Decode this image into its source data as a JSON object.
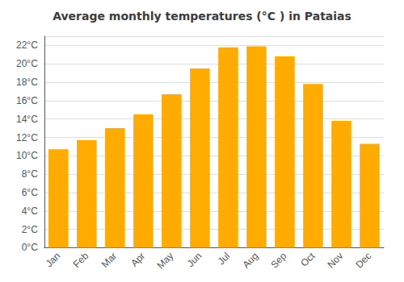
{
  "chart_data": {
    "type": "bar",
    "title": "Average monthly temperatures (°C ) in Pataias",
    "categories": [
      "Jan",
      "Feb",
      "Mar",
      "Apr",
      "May",
      "Jun",
      "Jul",
      "Aug",
      "Sep",
      "Oct",
      "Nov",
      "Dec"
    ],
    "values": [
      10.7,
      11.7,
      13.0,
      14.5,
      16.7,
      19.5,
      21.8,
      21.9,
      20.8,
      17.8,
      13.8,
      11.3
    ],
    "color": "#FFAB00",
    "ylim": [
      0,
      23
    ],
    "yticks": [
      {
        "value": 0,
        "label": "0°C"
      },
      {
        "value": 2,
        "label": "2°C"
      },
      {
        "value": 4,
        "label": "4°C"
      },
      {
        "value": 6,
        "label": "6°C"
      },
      {
        "value": 8,
        "label": "8°C"
      },
      {
        "value": 10,
        "label": "10°C"
      },
      {
        "value": 12,
        "label": "12°C"
      },
      {
        "value": 14,
        "label": "14°C"
      },
      {
        "value": 16,
        "label": "16°C"
      },
      {
        "value": 18,
        "label": "18°C"
      },
      {
        "value": 20,
        "label": "20°C"
      },
      {
        "value": 22,
        "label": "22°C"
      }
    ],
    "grid": true
  }
}
